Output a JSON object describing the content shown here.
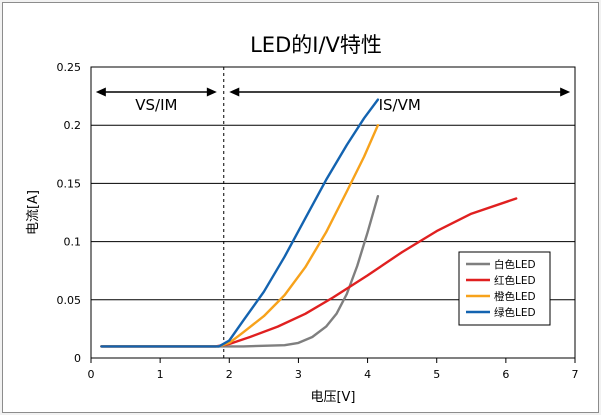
{
  "chart_data": {
    "type": "line",
    "title": "LED的I/V特性",
    "xlabel": "电压[V]",
    "ylabel": "电流[A]",
    "xlim": [
      0,
      7
    ],
    "ylim": [
      0,
      0.25
    ],
    "xticks": [
      "0",
      "1",
      "2",
      "3",
      "4",
      "5",
      "6",
      "7"
    ],
    "yticks": [
      "0",
      "0.05",
      "0.1",
      "0.15",
      "0.2",
      "0.25"
    ],
    "grid": "horizontal",
    "legend_position": "right",
    "divider_x": 1.92,
    "regions": [
      {
        "label": "VS/IM",
        "from": 0.07,
        "to": 1.82
      },
      {
        "label": "IS/VM",
        "from": 2.0,
        "to": 6.93
      }
    ],
    "series": [
      {
        "name": "白色LED",
        "color": "#7f7f7f",
        "x": [
          0.15,
          1.5,
          2.2,
          2.8,
          3.0,
          3.2,
          3.4,
          3.55,
          3.7,
          3.85,
          4.0,
          4.15
        ],
        "y": [
          0.01,
          0.01,
          0.01,
          0.011,
          0.013,
          0.018,
          0.027,
          0.038,
          0.055,
          0.079,
          0.108,
          0.139
        ]
      },
      {
        "name": "红色LED",
        "color": "#e02020",
        "x": [
          0.15,
          1.8,
          2.0,
          2.3,
          2.7,
          3.1,
          3.5,
          4.0,
          4.5,
          5.0,
          5.5,
          6.15
        ],
        "y": [
          0.01,
          0.01,
          0.012,
          0.018,
          0.027,
          0.038,
          0.052,
          0.071,
          0.091,
          0.109,
          0.124,
          0.137
        ]
      },
      {
        "name": "橙色LED",
        "color": "#f7a21b",
        "x": [
          0.15,
          1.85,
          2.0,
          2.2,
          2.5,
          2.8,
          3.1,
          3.4,
          3.7,
          3.95,
          4.15
        ],
        "y": [
          0.01,
          0.01,
          0.013,
          0.022,
          0.036,
          0.054,
          0.078,
          0.108,
          0.143,
          0.173,
          0.2
        ]
      },
      {
        "name": "绿色LED",
        "color": "#1363b0",
        "x": [
          0.15,
          1.85,
          2.0,
          2.2,
          2.5,
          2.8,
          3.1,
          3.4,
          3.7,
          3.95,
          4.15
        ],
        "y": [
          0.01,
          0.01,
          0.015,
          0.032,
          0.057,
          0.087,
          0.12,
          0.153,
          0.183,
          0.206,
          0.222
        ]
      }
    ]
  }
}
